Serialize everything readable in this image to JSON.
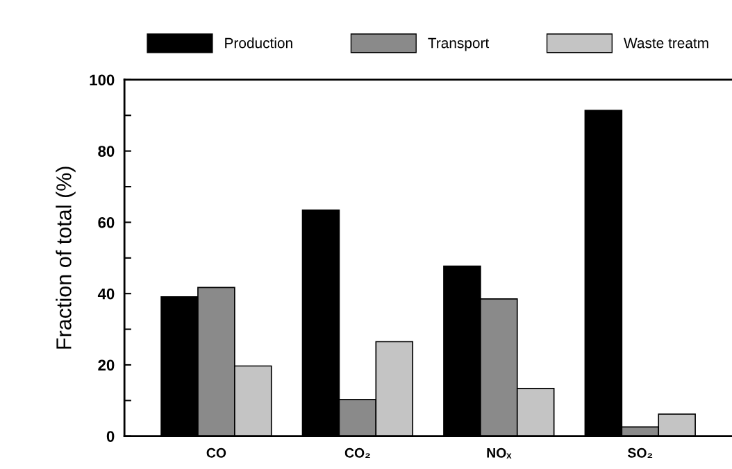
{
  "chart_data": {
    "type": "bar",
    "ylabel": "Fraction of total (%)",
    "categories": [
      "CO",
      "CO₂",
      "NOₓ",
      "SO₂"
    ],
    "series": [
      {
        "name": "Production",
        "color": "#000000",
        "values": [
          39.1,
          63.4,
          47.7,
          91.4
        ]
      },
      {
        "name": "Transport",
        "color": "#8a8a8a",
        "values": [
          41.7,
          10.3,
          38.5,
          2.6
        ]
      },
      {
        "name": "Waste treatm",
        "color": "#c4c4c4",
        "values": [
          19.7,
          26.5,
          13.4,
          6.2
        ]
      }
    ],
    "ylim": [
      0,
      100
    ],
    "yticks": [
      0,
      {
        "value": 10,
        "label": null
      },
      20,
      {
        "value": 30,
        "label": null
      },
      40,
      {
        "value": 50,
        "label": null
      },
      60,
      {
        "value": 70,
        "label": null
      },
      80,
      {
        "value": 90,
        "label": null
      },
      100
    ],
    "grid": false,
    "legend": "top"
  }
}
